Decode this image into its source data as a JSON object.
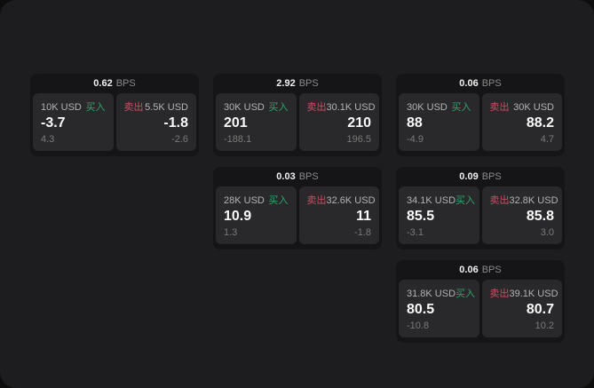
{
  "labels": {
    "bps_unit": "BPS",
    "buy": "买入",
    "sell": "卖出"
  },
  "colors": {
    "buy_green": "#30a46c",
    "sell_red": "#c94f63",
    "panel_bg": "#1d1d1f",
    "card_bg": "#151517",
    "tile_bg": "#29292b"
  },
  "cards": [
    {
      "bps": "0.62",
      "buy": {
        "size": "10K USD",
        "value": "-3.7",
        "delta": "4.3"
      },
      "sell": {
        "size": "5.5K USD",
        "value": "-1.8",
        "delta": "-2.6"
      }
    },
    {
      "bps": "2.92",
      "buy": {
        "size": "30K USD",
        "value": "201",
        "delta": "-188.1"
      },
      "sell": {
        "size": "30.1K USD",
        "value": "210",
        "delta": "196.5"
      }
    },
    {
      "bps": "0.06",
      "buy": {
        "size": "30K USD",
        "value": "88",
        "delta": "-4.9"
      },
      "sell": {
        "size": "30K USD",
        "value": "88.2",
        "delta": "4.7"
      }
    },
    {
      "bps": "0.03",
      "buy": {
        "size": "28K USD",
        "value": "10.9",
        "delta": "1.3"
      },
      "sell": {
        "size": "32.6K USD",
        "value": "11",
        "delta": "-1.8"
      }
    },
    {
      "bps": "0.09",
      "buy": {
        "size": "34.1K USD",
        "value": "85.5",
        "delta": "-3.1"
      },
      "sell": {
        "size": "32.8K USD",
        "value": "85.8",
        "delta": "3.0"
      }
    },
    {
      "bps": "0.06",
      "buy": {
        "size": "31.8K USD",
        "value": "80.5",
        "delta": "-10.8"
      },
      "sell": {
        "size": "39.1K USD",
        "value": "80.7",
        "delta": "10.2"
      }
    }
  ]
}
